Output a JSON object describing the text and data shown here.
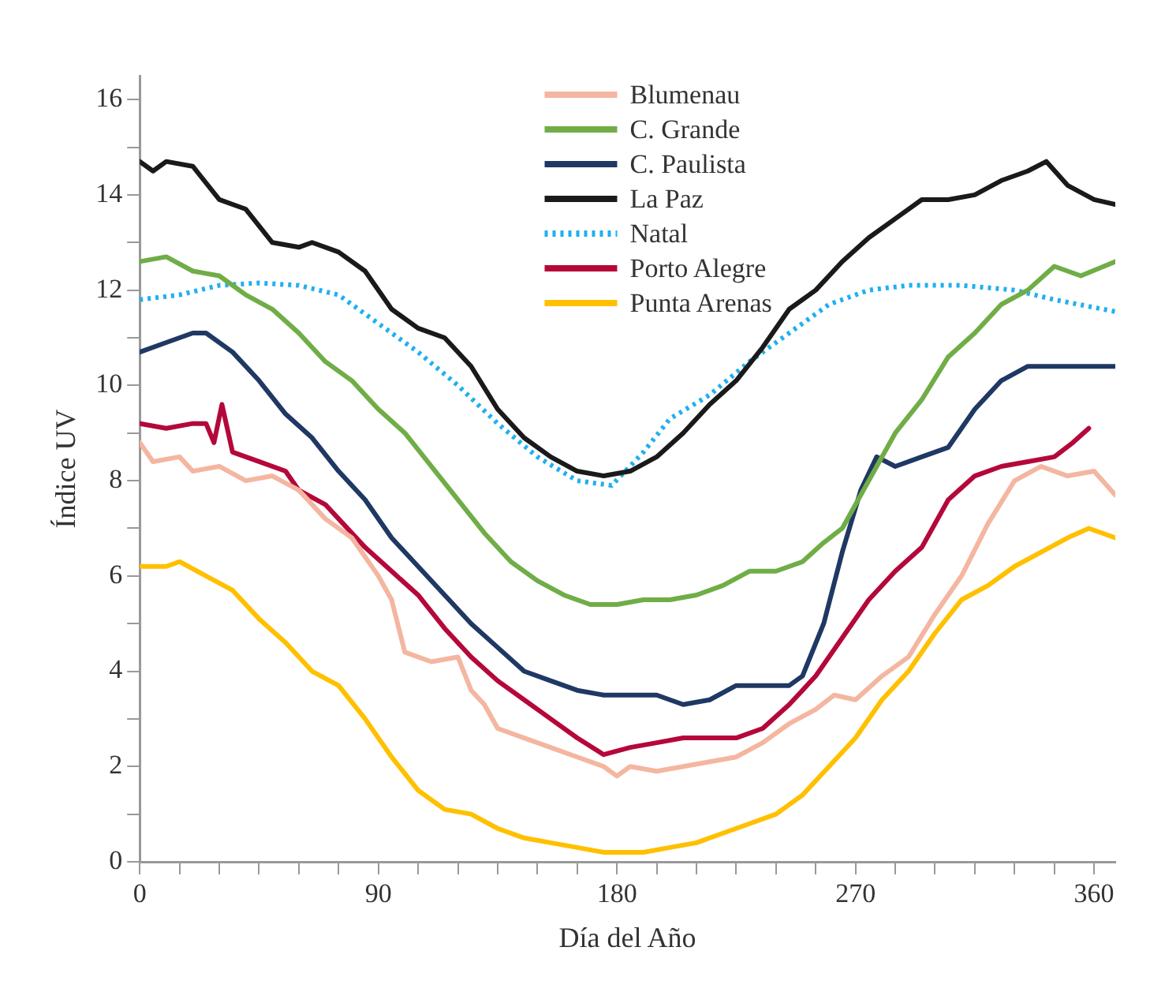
{
  "chart_data": {
    "type": "line",
    "xlabel": "Día del Año",
    "ylabel": "Índice UV",
    "xlim": [
      0,
      368
    ],
    "ylim": [
      0,
      16.5
    ],
    "xticks": [
      0,
      {
        "value": 15,
        "label": null
      },
      {
        "value": 30,
        "label": null
      },
      {
        "value": 45,
        "label": null
      },
      {
        "value": 60,
        "label": null
      },
      {
        "value": 75,
        "label": null
      },
      90,
      {
        "value": 105,
        "label": null
      },
      {
        "value": 120,
        "label": null
      },
      {
        "value": 135,
        "label": null
      },
      {
        "value": 150,
        "label": null
      },
      {
        "value": 165,
        "label": null
      },
      180,
      {
        "value": 195,
        "label": null
      },
      {
        "value": 210,
        "label": null
      },
      {
        "value": 225,
        "label": null
      },
      {
        "value": 240,
        "label": null
      },
      {
        "value": 255,
        "label": null
      },
      270,
      {
        "value": 285,
        "label": null
      },
      {
        "value": 300,
        "label": null
      },
      {
        "value": 315,
        "label": null
      },
      {
        "value": 330,
        "label": null
      },
      {
        "value": 345,
        "label": null
      },
      360
    ],
    "yticks": [
      0,
      {
        "value": 1,
        "label": null
      },
      2,
      {
        "value": 3,
        "label": null
      },
      4,
      {
        "value": 5,
        "label": null
      },
      6,
      {
        "value": 7,
        "label": null
      },
      8,
      {
        "value": 9,
        "label": null
      },
      10,
      {
        "value": 11,
        "label": null
      },
      12,
      {
        "value": 13,
        "label": null
      },
      14,
      {
        "value": 15,
        "label": null
      },
      16
    ],
    "grid": false,
    "legend": "top",
    "marker": "none",
    "series": [
      {
        "name": "Blumenau",
        "color": "#f4b6a0",
        "x": [
          0,
          5,
          15,
          20,
          30,
          40,
          50,
          60,
          70,
          80,
          90,
          95,
          100,
          110,
          120,
          125,
          130,
          135,
          145,
          155,
          165,
          175,
          180,
          185,
          195,
          205,
          215,
          225,
          235,
          245,
          255,
          262,
          270,
          280,
          290,
          300,
          310,
          320,
          330,
          340,
          350,
          360,
          368
        ],
        "values": [
          8.8,
          8.4,
          8.5,
          8.2,
          8.3,
          8.0,
          8.1,
          7.8,
          7.2,
          6.8,
          6.0,
          5.5,
          4.4,
          4.2,
          4.3,
          3.6,
          3.3,
          2.8,
          2.6,
          2.4,
          2.2,
          2.0,
          1.8,
          2.0,
          1.9,
          2.0,
          2.1,
          2.2,
          2.5,
          2.9,
          3.2,
          3.5,
          3.4,
          3.9,
          4.3,
          5.2,
          6.0,
          7.1,
          8.0,
          8.3,
          8.1,
          8.2,
          7.7
        ]
      },
      {
        "name": "C. Grande",
        "color": "#70ad47",
        "x": [
          0,
          10,
          20,
          30,
          40,
          50,
          60,
          70,
          80,
          90,
          100,
          110,
          120,
          130,
          140,
          150,
          160,
          170,
          180,
          190,
          200,
          210,
          220,
          230,
          240,
          250,
          258,
          265,
          275,
          285,
          295,
          305,
          315,
          325,
          335,
          345,
          355,
          368
        ],
        "values": [
          12.6,
          12.7,
          12.4,
          12.3,
          11.9,
          11.6,
          11.1,
          10.5,
          10.1,
          9.5,
          9.0,
          8.3,
          7.6,
          6.9,
          6.3,
          5.9,
          5.6,
          5.4,
          5.4,
          5.5,
          5.5,
          5.6,
          5.8,
          6.1,
          6.1,
          6.3,
          6.7,
          7.0,
          8.0,
          9.0,
          9.7,
          10.6,
          11.1,
          11.7,
          12.0,
          12.5,
          12.3,
          12.6
        ]
      },
      {
        "name": "C. Paulista",
        "color": "#1f3864",
        "x": [
          0,
          10,
          20,
          25,
          35,
          45,
          55,
          65,
          75,
          85,
          95,
          105,
          115,
          125,
          135,
          145,
          155,
          165,
          175,
          185,
          195,
          205,
          215,
          225,
          235,
          245,
          250,
          258,
          265,
          272,
          278,
          285,
          295,
          305,
          315,
          325,
          335,
          368
        ],
        "values": [
          10.7,
          10.9,
          11.1,
          11.1,
          10.7,
          10.1,
          9.4,
          8.9,
          8.2,
          7.6,
          6.8,
          6.2,
          5.6,
          5.0,
          4.5,
          4.0,
          3.8,
          3.6,
          3.5,
          3.5,
          3.5,
          3.3,
          3.4,
          3.7,
          3.7,
          3.7,
          3.9,
          5.0,
          6.5,
          7.8,
          8.5,
          8.3,
          8.5,
          8.7,
          9.5,
          10.1,
          10.4,
          10.4
        ]
      },
      {
        "name": "La Paz",
        "color": "#1a1a1a",
        "x": [
          0,
          5,
          10,
          20,
          30,
          40,
          50,
          60,
          65,
          75,
          85,
          95,
          105,
          115,
          125,
          135,
          145,
          155,
          165,
          175,
          185,
          195,
          205,
          215,
          225,
          235,
          245,
          255,
          265,
          275,
          285,
          295,
          305,
          315,
          325,
          335,
          342,
          350,
          360,
          368
        ],
        "values": [
          14.7,
          14.5,
          14.7,
          14.6,
          13.9,
          13.7,
          13.0,
          12.9,
          13.0,
          12.8,
          12.4,
          11.6,
          11.2,
          11.0,
          10.4,
          9.5,
          8.9,
          8.5,
          8.2,
          8.1,
          8.2,
          8.5,
          9.0,
          9.6,
          10.1,
          10.8,
          11.6,
          12.0,
          12.6,
          13.1,
          13.5,
          13.9,
          13.9,
          14.0,
          14.3,
          14.5,
          14.7,
          14.2,
          13.9,
          13.8
        ]
      },
      {
        "name": "Natal",
        "color": "#1fb0ef",
        "line_style": "dotted",
        "x": [
          0,
          15,
          30,
          45,
          60,
          75,
          90,
          105,
          120,
          135,
          150,
          165,
          178,
          190,
          200,
          215,
          230,
          245,
          260,
          275,
          290,
          310,
          330,
          345,
          368
        ],
        "values": [
          11.8,
          11.9,
          12.1,
          12.15,
          12.1,
          11.9,
          11.3,
          10.7,
          10.0,
          9.2,
          8.5,
          8.0,
          7.9,
          8.6,
          9.3,
          9.8,
          10.5,
          11.1,
          11.7,
          12.0,
          12.1,
          12.1,
          12.0,
          11.8,
          11.55
        ]
      },
      {
        "name": "Porto Alegre",
        "color": "#b5083a",
        "x": [
          0,
          10,
          20,
          25,
          28,
          31,
          35,
          45,
          55,
          60,
          70,
          75,
          85,
          95,
          105,
          115,
          125,
          135,
          145,
          155,
          165,
          175,
          185,
          195,
          205,
          215,
          225,
          235,
          245,
          255,
          265,
          275,
          285,
          295,
          305,
          315,
          325,
          335,
          345,
          352,
          358
        ],
        "values": [
          9.2,
          9.1,
          9.2,
          9.2,
          8.8,
          9.6,
          8.6,
          8.4,
          8.2,
          7.8,
          7.5,
          7.2,
          6.6,
          6.1,
          5.6,
          4.9,
          4.3,
          3.8,
          3.4,
          3.0,
          2.6,
          2.25,
          2.4,
          2.5,
          2.6,
          2.6,
          2.6,
          2.8,
          3.3,
          3.9,
          4.7,
          5.5,
          6.1,
          6.6,
          7.6,
          8.1,
          8.3,
          8.4,
          8.5,
          8.8,
          9.1
        ]
      },
      {
        "name": "Punta Arenas",
        "color": "#ffc000",
        "x": [
          0,
          10,
          15,
          25,
          35,
          45,
          55,
          65,
          75,
          85,
          95,
          105,
          115,
          125,
          135,
          145,
          155,
          165,
          175,
          190,
          200,
          210,
          220,
          230,
          240,
          250,
          260,
          270,
          280,
          290,
          300,
          310,
          320,
          330,
          340,
          350,
          358,
          368
        ],
        "values": [
          6.2,
          6.2,
          6.3,
          6.0,
          5.7,
          5.1,
          4.6,
          4.0,
          3.7,
          3.0,
          2.2,
          1.5,
          1.1,
          1.0,
          0.7,
          0.5,
          0.4,
          0.3,
          0.2,
          0.2,
          0.3,
          0.4,
          0.6,
          0.8,
          1.0,
          1.4,
          2.0,
          2.6,
          3.4,
          4.0,
          4.8,
          5.5,
          5.8,
          6.2,
          6.5,
          6.8,
          7.0,
          6.8
        ]
      }
    ]
  }
}
